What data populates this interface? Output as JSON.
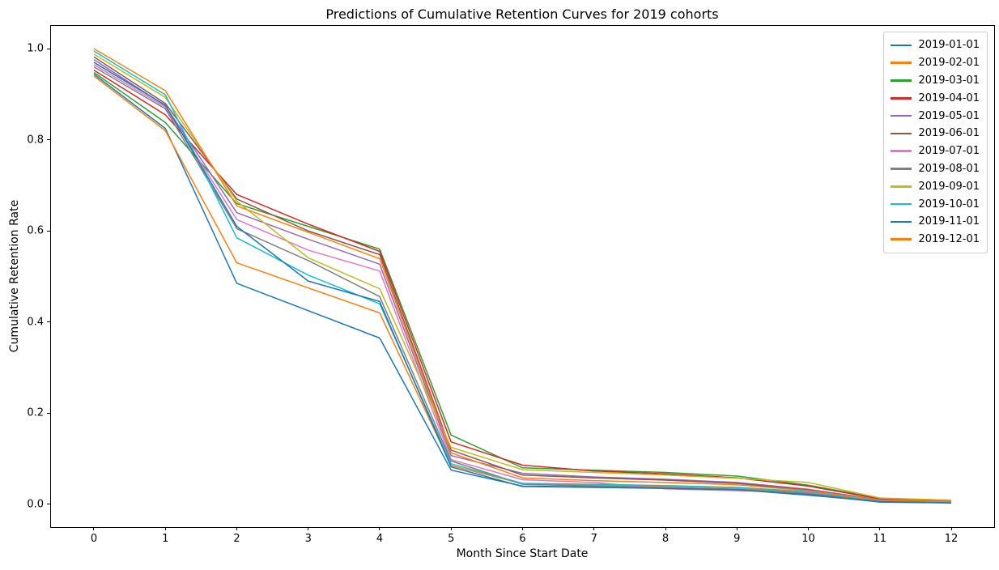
{
  "title": "Predictions of Cumulative Retention Curves for 2019 cohorts",
  "chart_data": {
    "type": "line",
    "title": "Predictions of Cumulative Retention Curves for 2019 cohorts",
    "xlabel": "Month Since Start Date",
    "ylabel": "Cumulative Retention Rate",
    "x": [
      0,
      1,
      2,
      3,
      4,
      5,
      6,
      7,
      8,
      9,
      10,
      11,
      12
    ],
    "xtick_labels": [
      "0",
      "1",
      "2",
      "3",
      "4",
      "5",
      "6",
      "7",
      "8",
      "9",
      "10",
      "11",
      "12"
    ],
    "ytick_values": [
      0.0,
      0.2,
      0.4,
      0.6,
      0.8,
      1.0
    ],
    "ytick_labels": [
      "0.0",
      "0.2",
      "0.4",
      "0.6",
      "0.8",
      "1.0"
    ],
    "xlim": [
      -0.6,
      12.6
    ],
    "ylim": [
      -0.05,
      1.05
    ],
    "grid": false,
    "legend_position": "upper right",
    "series": [
      {
        "name": "2019-01-01",
        "color": "#1f77b4",
        "values": [
          0.944,
          0.825,
          0.485,
          0.425,
          0.365,
          0.075,
          0.04,
          0.038,
          0.036,
          0.033,
          0.022,
          0.005,
          0.003
        ]
      },
      {
        "name": "2019-02-01",
        "color": "#ff7f0e",
        "values": [
          0.94,
          0.82,
          0.53,
          0.475,
          0.42,
          0.085,
          0.045,
          0.042,
          0.04,
          0.036,
          0.025,
          0.007,
          0.004
        ]
      },
      {
        "name": "2019-03-01",
        "color": "#2ca02c",
        "values": [
          0.948,
          0.838,
          0.66,
          0.61,
          0.56,
          0.152,
          0.08,
          0.075,
          0.07,
          0.062,
          0.042,
          0.013,
          0.009
        ]
      },
      {
        "name": "2019-04-01",
        "color": "#d62728",
        "values": [
          0.953,
          0.855,
          0.68,
          0.615,
          0.555,
          0.137,
          0.086,
          0.073,
          0.067,
          0.058,
          0.04,
          0.012,
          0.008
        ]
      },
      {
        "name": "2019-05-01",
        "color": "#9467bd",
        "values": [
          0.976,
          0.875,
          0.64,
          0.582,
          0.527,
          0.107,
          0.068,
          0.06,
          0.055,
          0.048,
          0.033,
          0.01,
          0.006
        ]
      },
      {
        "name": "2019-06-01",
        "color": "#8c564b",
        "values": [
          0.982,
          0.88,
          0.67,
          0.6,
          0.548,
          0.119,
          0.064,
          0.058,
          0.053,
          0.046,
          0.031,
          0.009,
          0.006
        ]
      },
      {
        "name": "2019-07-01",
        "color": "#e377c2",
        "values": [
          0.965,
          0.872,
          0.625,
          0.558,
          0.512,
          0.098,
          0.054,
          0.048,
          0.034,
          0.03,
          0.026,
          0.008,
          0.005
        ]
      },
      {
        "name": "2019-08-01",
        "color": "#7f7f7f",
        "values": [
          0.96,
          0.868,
          0.605,
          0.535,
          0.456,
          0.095,
          0.044,
          0.04,
          0.037,
          0.033,
          0.024,
          0.007,
          0.004
        ]
      },
      {
        "name": "2019-09-01",
        "color": "#bcbd22",
        "values": [
          0.988,
          0.893,
          0.665,
          0.541,
          0.473,
          0.125,
          0.076,
          0.07,
          0.064,
          0.057,
          0.048,
          0.014,
          0.009
        ]
      },
      {
        "name": "2019-10-01",
        "color": "#17becf",
        "values": [
          0.995,
          0.899,
          0.585,
          0.503,
          0.44,
          0.089,
          0.046,
          0.044,
          0.041,
          0.037,
          0.028,
          0.008,
          0.005
        ]
      },
      {
        "name": "2019-11-01",
        "color": "#1f77b4",
        "values": [
          0.97,
          0.876,
          0.61,
          0.49,
          0.445,
          0.082,
          0.039,
          0.037,
          0.035,
          0.032,
          0.02,
          0.006,
          0.0035
        ]
      },
      {
        "name": "2019-12-01",
        "color": "#ff7f0e",
        "values": [
          1.0,
          0.908,
          0.655,
          0.597,
          0.539,
          0.113,
          0.058,
          0.052,
          0.048,
          0.043,
          0.03,
          0.009,
          0.006
        ]
      }
    ]
  }
}
